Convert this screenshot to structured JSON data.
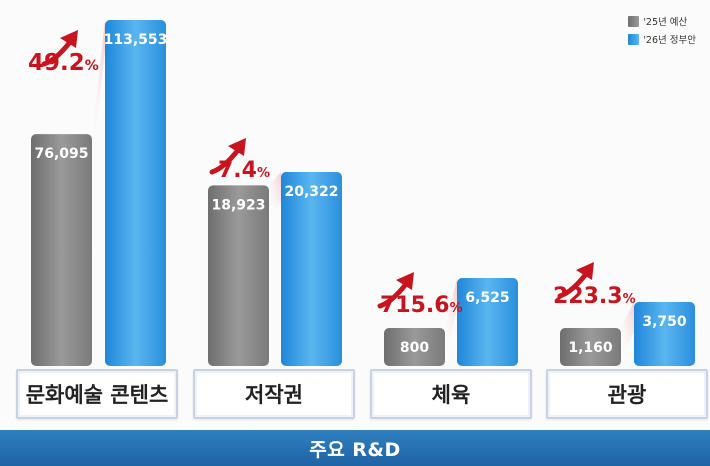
{
  "legend": {
    "items": [
      {
        "label": "'25년 예산",
        "color": "#8a8a8a"
      },
      {
        "label": "'26년 정부안",
        "color": "#3fa2e6"
      }
    ]
  },
  "footer": {
    "title": "주요 R&D"
  },
  "chart_data": {
    "type": "bar",
    "categories": [
      "문화예술 콘텐츠",
      "저작권",
      "체육",
      "관광"
    ],
    "series": [
      {
        "name": "'25년 예산",
        "values": [
          76095,
          18923,
          800,
          1160
        ],
        "labels": [
          "76,095",
          "18,923",
          "800",
          "1,160"
        ]
      },
      {
        "name": "'26년 정부안",
        "values": [
          113553,
          20322,
          6525,
          3750
        ],
        "labels": [
          "113,553",
          "20,322",
          "6,525",
          "3,750"
        ]
      }
    ],
    "growth_labels": [
      {
        "value": "49.2",
        "unit": "%"
      },
      {
        "value": "7.4",
        "unit": "%"
      },
      {
        "value": "715.6",
        "unit": "%"
      },
      {
        "value": "223.3",
        "unit": "%"
      }
    ],
    "scale": "relative per group",
    "legend_position": "top-right",
    "colors": {
      "prior": "#8a8a8a",
      "proposal": "#3fa2e6",
      "growth": "#c8141e"
    }
  }
}
